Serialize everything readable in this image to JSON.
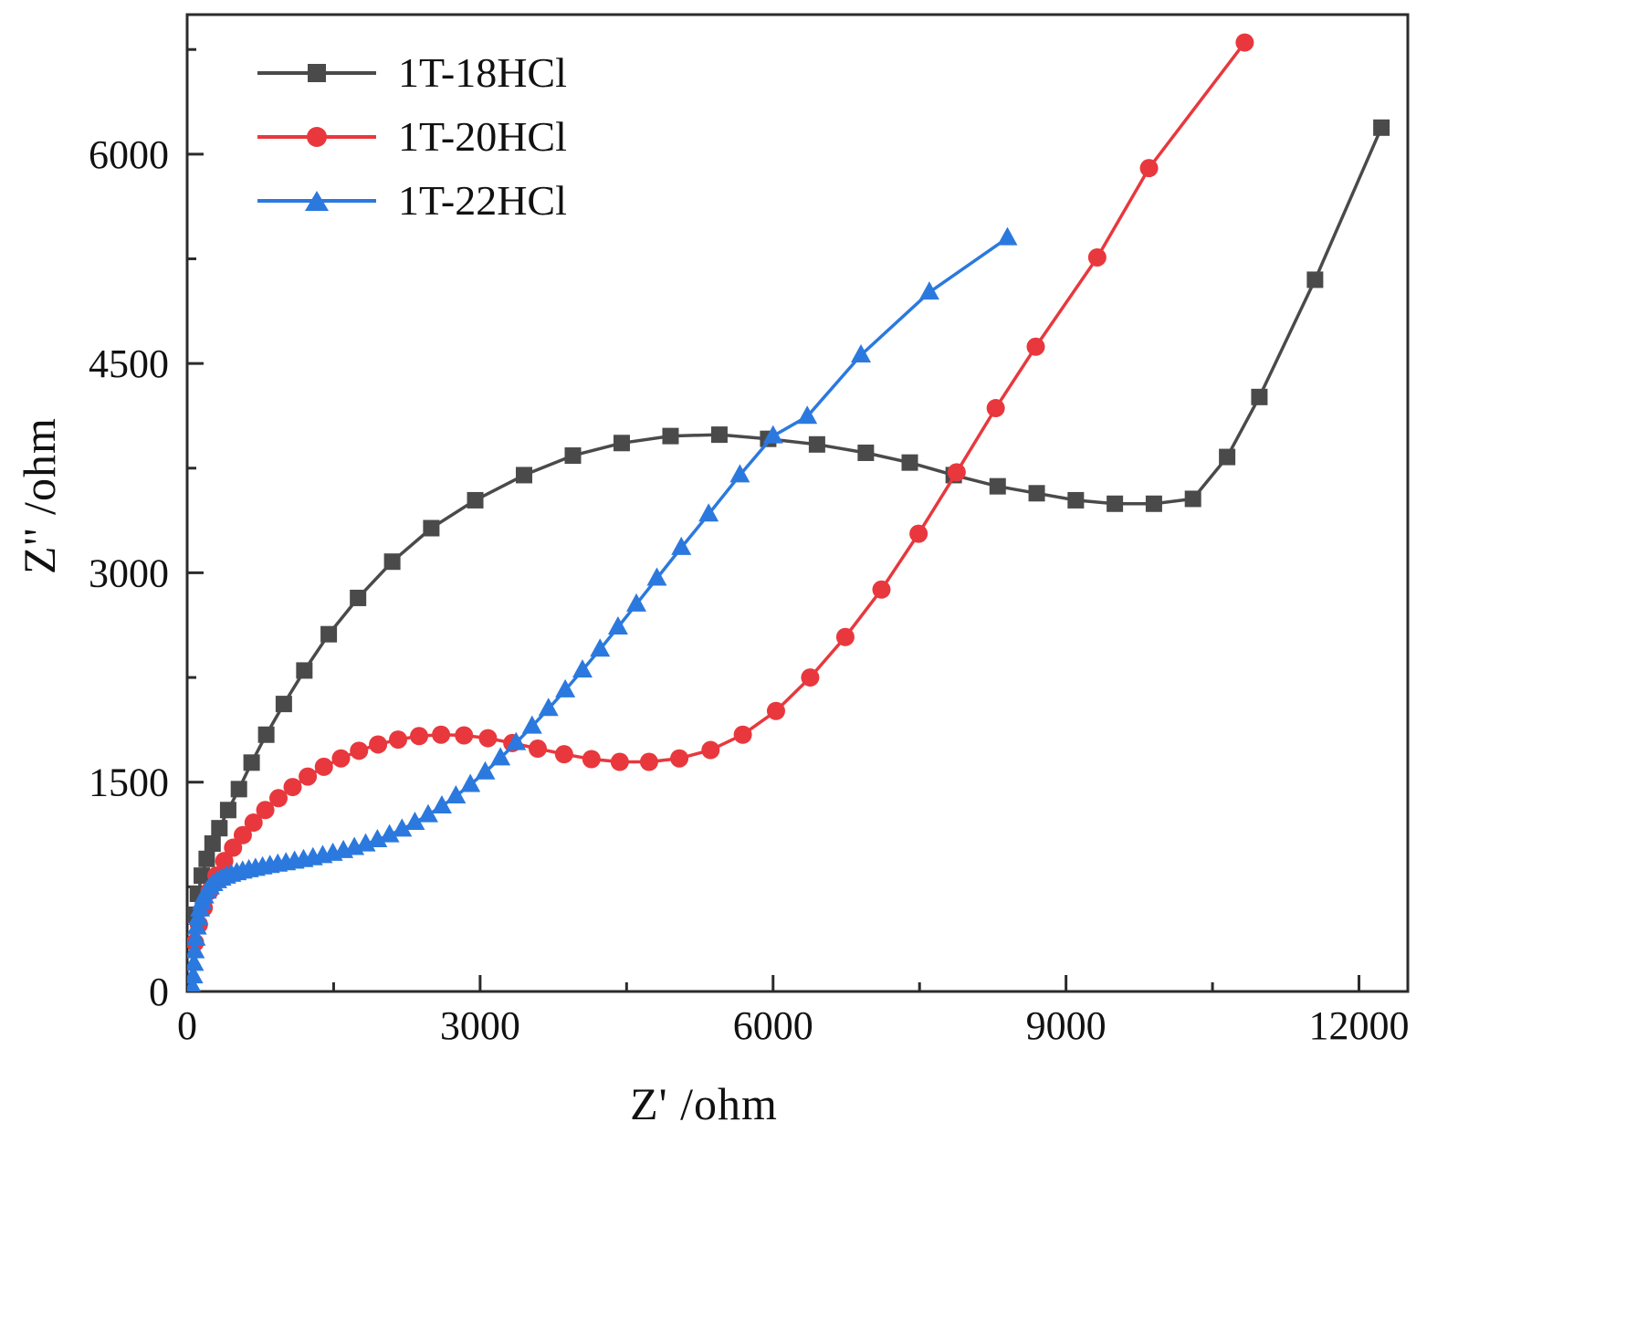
{
  "figure": {
    "background": "#ffffff",
    "frame_color": "#2b2b2b",
    "text_color": "#111111"
  },
  "chart_data": {
    "type": "scatter",
    "title": "",
    "xlabel": "Z' /ohm",
    "ylabel": "Z'' /ohm",
    "xlim": [
      0,
      12500
    ],
    "ylim": [
      0,
      7000
    ],
    "xticks": [
      0,
      3000,
      6000,
      9000,
      12000
    ],
    "yticks": [
      0,
      1500,
      3000,
      4500,
      6000
    ],
    "x_minor_step": 1500,
    "y_minor_step": 750,
    "grid": false,
    "legend_position": "top-left",
    "series": [
      {
        "name": "1T-18HCl",
        "color": "#4a4a4a",
        "marker": "square",
        "points": [
          [
            80,
            550
          ],
          [
            110,
            700
          ],
          [
            150,
            830
          ],
          [
            200,
            950
          ],
          [
            260,
            1060
          ],
          [
            330,
            1170
          ],
          [
            420,
            1300
          ],
          [
            530,
            1450
          ],
          [
            660,
            1640
          ],
          [
            810,
            1840
          ],
          [
            990,
            2060
          ],
          [
            1200,
            2300
          ],
          [
            1450,
            2560
          ],
          [
            1750,
            2820
          ],
          [
            2100,
            3080
          ],
          [
            2500,
            3320
          ],
          [
            2950,
            3520
          ],
          [
            3450,
            3700
          ],
          [
            3950,
            3840
          ],
          [
            4450,
            3930
          ],
          [
            4950,
            3980
          ],
          [
            5450,
            3990
          ],
          [
            5950,
            3960
          ],
          [
            6450,
            3920
          ],
          [
            6950,
            3860
          ],
          [
            7400,
            3790
          ],
          [
            7850,
            3700
          ],
          [
            8300,
            3620
          ],
          [
            8700,
            3570
          ],
          [
            9100,
            3520
          ],
          [
            9500,
            3495
          ],
          [
            9900,
            3495
          ],
          [
            10300,
            3530
          ],
          [
            10650,
            3830
          ],
          [
            10980,
            4260
          ],
          [
            11550,
            5100
          ],
          [
            12230,
            6190
          ]
        ]
      },
      {
        "name": "1T-20HCl",
        "color": "#e8383d",
        "marker": "circle",
        "points": [
          [
            80,
            350
          ],
          [
            120,
            480
          ],
          [
            170,
            600
          ],
          [
            230,
            720
          ],
          [
            300,
            830
          ],
          [
            380,
            935
          ],
          [
            470,
            1030
          ],
          [
            570,
            1120
          ],
          [
            680,
            1210
          ],
          [
            800,
            1300
          ],
          [
            935,
            1385
          ],
          [
            1080,
            1465
          ],
          [
            1235,
            1540
          ],
          [
            1400,
            1610
          ],
          [
            1575,
            1670
          ],
          [
            1760,
            1725
          ],
          [
            1955,
            1770
          ],
          [
            2160,
            1805
          ],
          [
            2375,
            1830
          ],
          [
            2600,
            1840
          ],
          [
            2835,
            1835
          ],
          [
            3080,
            1815
          ],
          [
            3330,
            1780
          ],
          [
            3590,
            1740
          ],
          [
            3860,
            1700
          ],
          [
            4140,
            1665
          ],
          [
            4430,
            1645
          ],
          [
            4730,
            1645
          ],
          [
            5040,
            1670
          ],
          [
            5360,
            1730
          ],
          [
            5690,
            1840
          ],
          [
            6030,
            2010
          ],
          [
            6380,
            2250
          ],
          [
            6740,
            2540
          ],
          [
            7110,
            2880
          ],
          [
            7490,
            3280
          ],
          [
            7880,
            3720
          ],
          [
            8280,
            4180
          ],
          [
            8690,
            4620
          ],
          [
            9320,
            5260
          ],
          [
            9850,
            5900
          ],
          [
            10830,
            6800
          ]
        ]
      },
      {
        "name": "1T-22HCl",
        "color": "#2b79de",
        "marker": "triangle",
        "points": [
          [
            55,
            30
          ],
          [
            62,
            110
          ],
          [
            70,
            200
          ],
          [
            78,
            290
          ],
          [
            88,
            380
          ],
          [
            100,
            460
          ],
          [
            115,
            530
          ],
          [
            132,
            590
          ],
          [
            152,
            640
          ],
          [
            175,
            683
          ],
          [
            202,
            718
          ],
          [
            233,
            748
          ],
          [
            268,
            772
          ],
          [
            308,
            792
          ],
          [
            352,
            810
          ],
          [
            400,
            825
          ],
          [
            452,
            838
          ],
          [
            508,
            850
          ],
          [
            568,
            861
          ],
          [
            632,
            871
          ],
          [
            700,
            881
          ],
          [
            772,
            891
          ],
          [
            848,
            901
          ],
          [
            928,
            911
          ],
          [
            1012,
            921
          ],
          [
            1100,
            932
          ],
          [
            1192,
            944
          ],
          [
            1288,
            957
          ],
          [
            1388,
            972
          ],
          [
            1492,
            989
          ],
          [
            1600,
            1008
          ],
          [
            1712,
            1030
          ],
          [
            1828,
            1056
          ],
          [
            1948,
            1086
          ],
          [
            2072,
            1121
          ],
          [
            2200,
            1162
          ],
          [
            2332,
            1210
          ],
          [
            2468,
            1265
          ],
          [
            2608,
            1328
          ],
          [
            2752,
            1400
          ],
          [
            2900,
            1482
          ],
          [
            3052,
            1572
          ],
          [
            3208,
            1672
          ],
          [
            3368,
            1782
          ],
          [
            3532,
            1900
          ],
          [
            3700,
            2026
          ],
          [
            3872,
            2160
          ],
          [
            4048,
            2302
          ],
          [
            4228,
            2452
          ],
          [
            4412,
            2610
          ],
          [
            4600,
            2775
          ],
          [
            4810,
            2960
          ],
          [
            5060,
            3180
          ],
          [
            5340,
            3420
          ],
          [
            5660,
            3700
          ],
          [
            6000,
            3980
          ],
          [
            6350,
            4120
          ],
          [
            6900,
            4560
          ],
          [
            7600,
            5010
          ],
          [
            8400,
            5400
          ]
        ]
      }
    ]
  }
}
